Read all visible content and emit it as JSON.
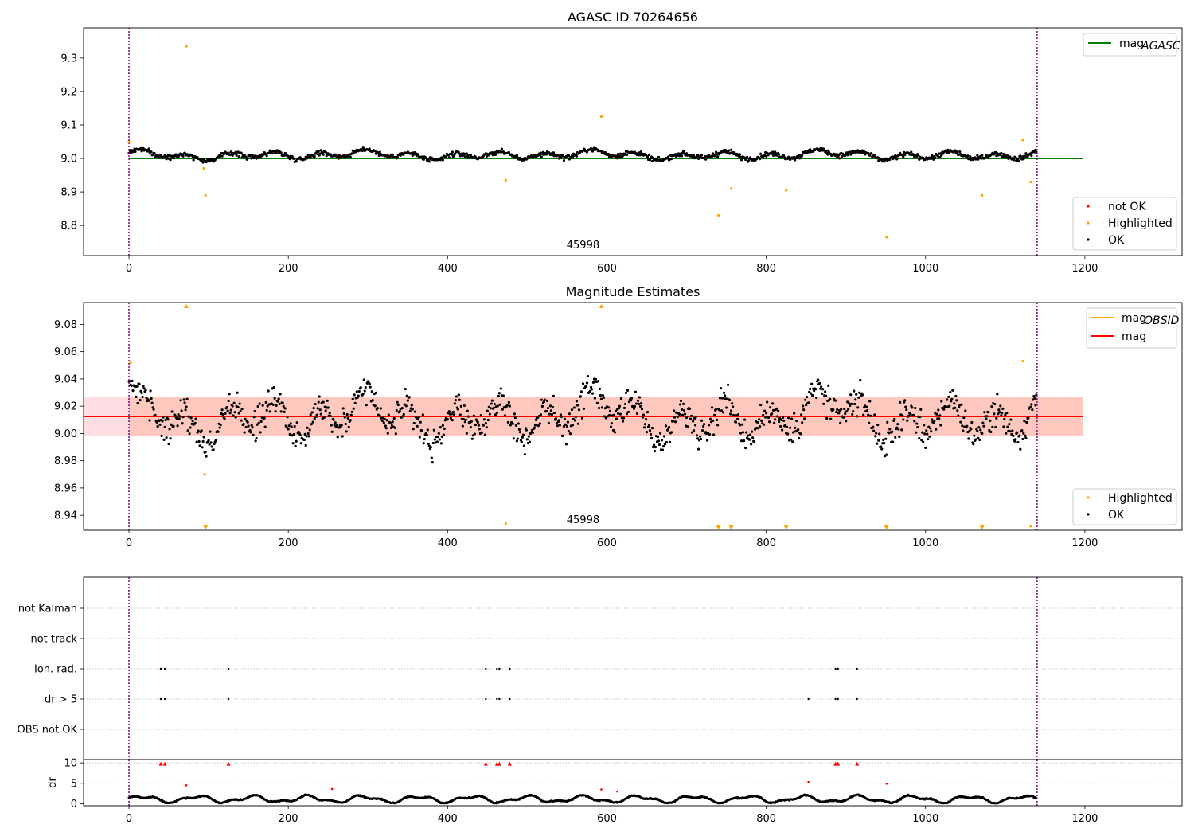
{
  "figure_title": "AGASC ID 70264656",
  "chart_data": [
    {
      "id": "agasc",
      "type": "scatter",
      "title": "AGASC ID 70264656",
      "xlim": [
        -57,
        1322
      ],
      "ylim": [
        8.71,
        9.39
      ],
      "xticks": [
        0,
        200,
        400,
        600,
        800,
        1000,
        1200
      ],
      "yticks": [
        8.8,
        8.9,
        9.0,
        9.1,
        9.2,
        9.3
      ],
      "ytick_labels": [
        "8.8",
        "8.9",
        "9.0",
        "9.1",
        "9.2",
        "9.3"
      ],
      "annotation": "45998",
      "annotation_x": 570,
      "mag_agasc": 9.0,
      "line_x": [
        0,
        1198
      ],
      "vlines": [
        0,
        1140
      ],
      "legend_lines": [
        {
          "name": "mag",
          "subscript": "AGASC",
          "color": "#008000"
        }
      ],
      "legend_points": [
        {
          "name": "not OK",
          "color": "#ff0000"
        },
        {
          "name": "Highlighted",
          "color": "#ffa500"
        },
        {
          "name": "OK",
          "color": "#000000"
        }
      ],
      "highlighted": [
        [
          0,
          9.05
        ],
        [
          72,
          9.335
        ],
        [
          94,
          8.97
        ],
        [
          96,
          8.89
        ],
        [
          473,
          8.935
        ],
        [
          593,
          9.125
        ],
        [
          740,
          8.83
        ],
        [
          756,
          8.91
        ],
        [
          825,
          8.905
        ],
        [
          951,
          8.765
        ],
        [
          1071,
          8.89
        ],
        [
          1122,
          9.055
        ],
        [
          1132,
          8.93
        ]
      ]
    },
    {
      "id": "estimates",
      "type": "scatter",
      "title": "Magnitude Estimates",
      "xlim": [
        -57,
        1322
      ],
      "ylim": [
        8.929,
        9.096
      ],
      "xticks": [
        0,
        200,
        400,
        600,
        800,
        1000,
        1200
      ],
      "yticks": [
        8.94,
        8.96,
        8.98,
        9.0,
        9.02,
        9.04,
        9.06,
        9.08
      ],
      "ytick_labels": [
        "8.94",
        "8.96",
        "8.98",
        "9.00",
        "9.02",
        "9.04",
        "9.06",
        "9.08"
      ],
      "annotation": "45998",
      "annotation_x": 570,
      "mag": 9.0125,
      "band": [
        8.998,
        9.027
      ],
      "mag_obsid": 9.0125,
      "line_x": [
        0,
        1198
      ],
      "vlines": [
        0,
        1140
      ],
      "legend_lines": [
        {
          "name": "mag",
          "subscript": "OBSID",
          "color": "#ffa500"
        },
        {
          "name": "mag",
          "subscript": "",
          "color": "#ff0000"
        }
      ],
      "legend_points": [
        {
          "name": "Highlighted",
          "color": "#ffa500"
        },
        {
          "name": "OK",
          "color": "#000000"
        }
      ],
      "highlighted_in_range": [
        [
          2,
          9.052
        ],
        [
          95,
          8.97
        ],
        [
          473,
          8.934
        ],
        [
          1122,
          9.053
        ],
        [
          1132,
          8.932
        ]
      ],
      "arrows_up": [
        72,
        593
      ],
      "arrows_down": [
        96,
        740,
        756,
        825,
        951,
        1071
      ]
    },
    {
      "id": "flags",
      "type": "scatter",
      "xlim": [
        -57,
        1322
      ],
      "categories": [
        "OBS not OK",
        "dr > 5",
        "Ion. rad.",
        "not track",
        "not Kalman"
      ],
      "vlines": [
        0,
        1140
      ],
      "flag_points": {
        "dr > 5": [
          40,
          45,
          125,
          448,
          462,
          465,
          478,
          853,
          887,
          890,
          914
        ],
        "Ion. rad.": [
          40,
          45,
          125,
          448,
          462,
          465,
          478,
          887,
          890,
          914
        ]
      }
    },
    {
      "id": "dr",
      "type": "scatter",
      "ylabel": "dr",
      "xlim": [
        -57,
        1322
      ],
      "ylim": [
        -0.5,
        10.8
      ],
      "xticks": [
        0,
        200,
        400,
        600,
        800,
        1000,
        1200
      ],
      "yticks": [
        0,
        5,
        10
      ],
      "ytick_labels": [
        "0",
        "5",
        "10"
      ],
      "vlines": [
        0,
        1140
      ],
      "red_points": [
        [
          40,
          9.8
        ],
        [
          45,
          9.8
        ],
        [
          72,
          4.5
        ],
        [
          125,
          9.8
        ],
        [
          255,
          3.6
        ],
        [
          448,
          9.8
        ],
        [
          462,
          9.8
        ],
        [
          465,
          9.8
        ],
        [
          478,
          9.8
        ],
        [
          593,
          3.5
        ],
        [
          613,
          3.0
        ],
        [
          853,
          5.3
        ],
        [
          887,
          9.8
        ],
        [
          890,
          9.8
        ],
        [
          914,
          9.8
        ],
        [
          951,
          4.9
        ]
      ]
    }
  ]
}
